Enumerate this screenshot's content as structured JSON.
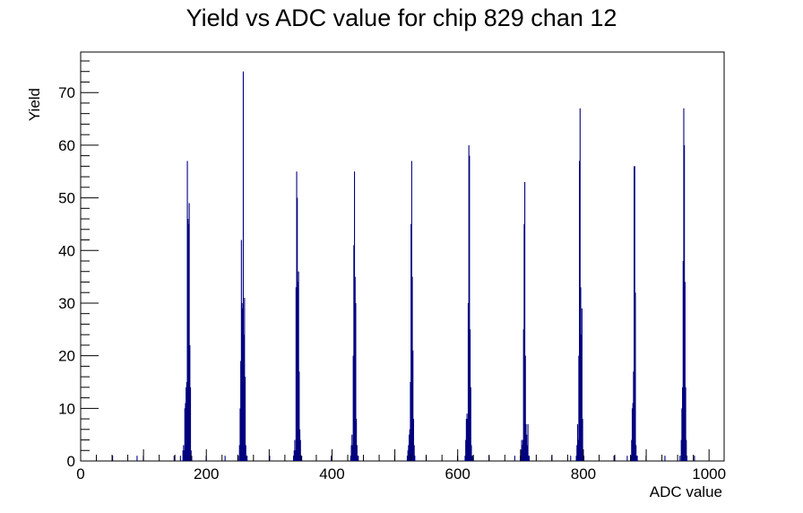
{
  "chart_data": {
    "type": "bar",
    "title": "Yield vs ADC value for chip 829 chan 12",
    "xlabel": "ADC value",
    "ylabel": "Yield",
    "xlim": [
      0,
      1024
    ],
    "ylim": [
      0,
      77.7
    ],
    "x_ticks": [
      0,
      200,
      400,
      600,
      800,
      1000
    ],
    "y_ticks": [
      0,
      10,
      20,
      30,
      40,
      50,
      60,
      70
    ],
    "grid": false,
    "colors": {
      "bars": "#00007f",
      "axes": "#000000"
    },
    "bins": [
      {
        "x": 50,
        "y": 1
      },
      {
        "x": 89,
        "y": 1
      },
      {
        "x": 99,
        "y": 1
      },
      {
        "x": 148,
        "y": 1
      },
      {
        "x": 158,
        "y": 1
      },
      {
        "x": 162,
        "y": 2
      },
      {
        "x": 163,
        "y": 3
      },
      {
        "x": 164,
        "y": 2
      },
      {
        "x": 165,
        "y": 10
      },
      {
        "x": 166,
        "y": 11
      },
      {
        "x": 167,
        "y": 14
      },
      {
        "x": 168,
        "y": 15
      },
      {
        "x": 169,
        "y": 57
      },
      {
        "x": 170,
        "y": 46
      },
      {
        "x": 171,
        "y": 45
      },
      {
        "x": 172,
        "y": 49
      },
      {
        "x": 173,
        "y": 22
      },
      {
        "x": 174,
        "y": 14
      },
      {
        "x": 175,
        "y": 2
      },
      {
        "x": 176,
        "y": 1
      },
      {
        "x": 199,
        "y": 1
      },
      {
        "x": 229,
        "y": 1
      },
      {
        "x": 250,
        "y": 1
      },
      {
        "x": 252,
        "y": 3
      },
      {
        "x": 253,
        "y": 10
      },
      {
        "x": 254,
        "y": 19
      },
      {
        "x": 255,
        "y": 42
      },
      {
        "x": 256,
        "y": 30
      },
      {
        "x": 257,
        "y": 29
      },
      {
        "x": 258,
        "y": 74
      },
      {
        "x": 259,
        "y": 24
      },
      {
        "x": 260,
        "y": 31
      },
      {
        "x": 261,
        "y": 16
      },
      {
        "x": 262,
        "y": 3
      },
      {
        "x": 263,
        "y": 1
      },
      {
        "x": 264,
        "y": 1
      },
      {
        "x": 300,
        "y": 1
      },
      {
        "x": 338,
        "y": 1
      },
      {
        "x": 339,
        "y": 2
      },
      {
        "x": 340,
        "y": 4
      },
      {
        "x": 341,
        "y": 2
      },
      {
        "x": 342,
        "y": 33
      },
      {
        "x": 343,
        "y": 55
      },
      {
        "x": 344,
        "y": 50
      },
      {
        "x": 345,
        "y": 34
      },
      {
        "x": 346,
        "y": 36
      },
      {
        "x": 347,
        "y": 17
      },
      {
        "x": 348,
        "y": 6
      },
      {
        "x": 349,
        "y": 4
      },
      {
        "x": 350,
        "y": 1
      },
      {
        "x": 351,
        "y": 1
      },
      {
        "x": 398,
        "y": 1
      },
      {
        "x": 429,
        "y": 1
      },
      {
        "x": 430,
        "y": 3
      },
      {
        "x": 431,
        "y": 5
      },
      {
        "x": 432,
        "y": 3
      },
      {
        "x": 433,
        "y": 20
      },
      {
        "x": 434,
        "y": 41
      },
      {
        "x": 435,
        "y": 55
      },
      {
        "x": 436,
        "y": 35
      },
      {
        "x": 437,
        "y": 30
      },
      {
        "x": 438,
        "y": 8
      },
      {
        "x": 439,
        "y": 3
      },
      {
        "x": 440,
        "y": 1
      },
      {
        "x": 441,
        "y": 1
      },
      {
        "x": 499,
        "y": 1
      },
      {
        "x": 519,
        "y": 1
      },
      {
        "x": 520,
        "y": 2
      },
      {
        "x": 521,
        "y": 3
      },
      {
        "x": 522,
        "y": 5
      },
      {
        "x": 523,
        "y": 6
      },
      {
        "x": 524,
        "y": 15
      },
      {
        "x": 525,
        "y": 45
      },
      {
        "x": 526,
        "y": 57
      },
      {
        "x": 527,
        "y": 35
      },
      {
        "x": 528,
        "y": 21
      },
      {
        "x": 529,
        "y": 8
      },
      {
        "x": 530,
        "y": 3
      },
      {
        "x": 531,
        "y": 1
      },
      {
        "x": 549,
        "y": 1
      },
      {
        "x": 599,
        "y": 1
      },
      {
        "x": 611,
        "y": 1
      },
      {
        "x": 612,
        "y": 4
      },
      {
        "x": 613,
        "y": 8
      },
      {
        "x": 614,
        "y": 9
      },
      {
        "x": 615,
        "y": 8
      },
      {
        "x": 616,
        "y": 30
      },
      {
        "x": 617,
        "y": 60
      },
      {
        "x": 618,
        "y": 58
      },
      {
        "x": 619,
        "y": 25
      },
      {
        "x": 620,
        "y": 14
      },
      {
        "x": 621,
        "y": 3
      },
      {
        "x": 622,
        "y": 1
      },
      {
        "x": 623,
        "y": 1
      },
      {
        "x": 649,
        "y": 1
      },
      {
        "x": 690,
        "y": 1
      },
      {
        "x": 699,
        "y": 1
      },
      {
        "x": 700,
        "y": 2
      },
      {
        "x": 701,
        "y": 4
      },
      {
        "x": 702,
        "y": 3
      },
      {
        "x": 703,
        "y": 4
      },
      {
        "x": 704,
        "y": 25
      },
      {
        "x": 705,
        "y": 45
      },
      {
        "x": 706,
        "y": 53
      },
      {
        "x": 707,
        "y": 20
      },
      {
        "x": 708,
        "y": 7
      },
      {
        "x": 709,
        "y": 5
      },
      {
        "x": 710,
        "y": 3
      },
      {
        "x": 711,
        "y": 7
      },
      {
        "x": 712,
        "y": 1
      },
      {
        "x": 713,
        "y": 1
      },
      {
        "x": 749,
        "y": 1
      },
      {
        "x": 779,
        "y": 1
      },
      {
        "x": 788,
        "y": 1
      },
      {
        "x": 789,
        "y": 3
      },
      {
        "x": 790,
        "y": 7
      },
      {
        "x": 791,
        "y": 4
      },
      {
        "x": 792,
        "y": 20
      },
      {
        "x": 793,
        "y": 57
      },
      {
        "x": 794,
        "y": 67
      },
      {
        "x": 795,
        "y": 33
      },
      {
        "x": 796,
        "y": 24
      },
      {
        "x": 797,
        "y": 29
      },
      {
        "x": 798,
        "y": 8
      },
      {
        "x": 799,
        "y": 1
      },
      {
        "x": 800,
        "y": 1
      },
      {
        "x": 848,
        "y": 1
      },
      {
        "x": 869,
        "y": 1
      },
      {
        "x": 875,
        "y": 1
      },
      {
        "x": 876,
        "y": 4
      },
      {
        "x": 877,
        "y": 10
      },
      {
        "x": 878,
        "y": 11
      },
      {
        "x": 879,
        "y": 17
      },
      {
        "x": 880,
        "y": 56
      },
      {
        "x": 881,
        "y": 56
      },
      {
        "x": 882,
        "y": 32
      },
      {
        "x": 883,
        "y": 3
      },
      {
        "x": 884,
        "y": 1
      },
      {
        "x": 885,
        "y": 1
      },
      {
        "x": 899,
        "y": 1
      },
      {
        "x": 929,
        "y": 1
      },
      {
        "x": 953,
        "y": 1
      },
      {
        "x": 955,
        "y": 4
      },
      {
        "x": 956,
        "y": 10
      },
      {
        "x": 957,
        "y": 14
      },
      {
        "x": 958,
        "y": 38
      },
      {
        "x": 959,
        "y": 67
      },
      {
        "x": 960,
        "y": 60
      },
      {
        "x": 961,
        "y": 34
      },
      {
        "x": 962,
        "y": 14
      },
      {
        "x": 963,
        "y": 4
      },
      {
        "x": 964,
        "y": 1
      },
      {
        "x": 976,
        "y": 1
      }
    ]
  }
}
